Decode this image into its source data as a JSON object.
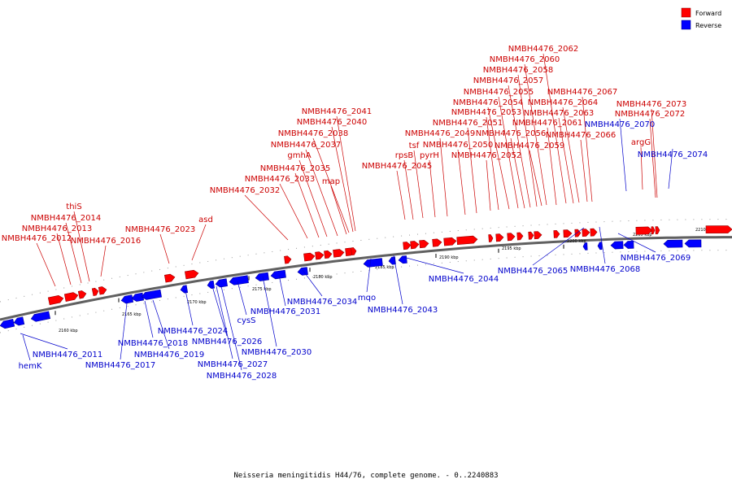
{
  "legend": [
    {
      "label": "Forward",
      "color": "#ff0000"
    },
    {
      "label": "Reverse",
      "color": "#0000ff"
    }
  ],
  "caption": "Neisseria meningitidis H44/76, complete genome. - 0..2240883",
  "colors": {
    "forward_label": "#cc0000",
    "reverse_label": "#0000cc",
    "backbone": "#808080"
  },
  "scale_ticks": [
    "2160 kbp",
    "2165 kbp",
    "2170 kbp",
    "2175 kbp",
    "2180 kbp",
    "2185 kbp",
    "2190 kbp",
    "2195 kbp",
    "2200 kbp",
    "2205 kbp",
    "2210 kbp"
  ],
  "forward_genes": [
    "NMBH4476_2012",
    "NMBH4476_2013",
    "NMBH4476_2014",
    "thiS",
    "NMBH4476_2016",
    "NMBH4476_2023",
    "asd",
    "NMBH4476_2032",
    "NMBH4476_2033",
    "NMBH4476_2035",
    "gmhA",
    "NMBH4476_2037",
    "map",
    "NMBH4476_2038",
    "NMBH4476_2040",
    "NMBH4476_2041",
    "NMBH4476_2045",
    "rpsB",
    "tsf",
    "pyrH",
    "NMBH4476_2049",
    "NMBH4476_2050",
    "NMBH4476_2051",
    "NMBH4476_2052",
    "NMBH4476_2053",
    "NMBH4476_2054",
    "NMBH4476_2055",
    "NMBH4476_2056",
    "NMBH4476_2057",
    "NMBH4476_2058",
    "NMBH4476_2059",
    "NMBH4476_2060",
    "NMBH4476_2061",
    "NMBH4476_2062",
    "NMBH4476_2063",
    "NMBH4476_2064",
    "NMBH4476_2066",
    "NMBH4476_2067",
    "argG",
    "NMBH4476_2072",
    "NMBH4476_2073"
  ],
  "reverse_genes": [
    "NMBH4476_2011",
    "hemK",
    "NMBH4476_2017",
    "NMBH4476_2018",
    "NMBH4476_2019",
    "NMBH4476_2024",
    "NMBH4476_2026",
    "NMBH4476_2027",
    "NMBH4476_2028",
    "cysS",
    "NMBH4476_2030",
    "NMBH4476_2031",
    "NMBH4476_2034",
    "mqo",
    "NMBH4476_2043",
    "NMBH4476_2044",
    "NMBH4476_2065",
    "NMBH4476_2068",
    "NMBH4476_2069",
    "NMBH4476_2070",
    "NMBH4476_2074"
  ]
}
